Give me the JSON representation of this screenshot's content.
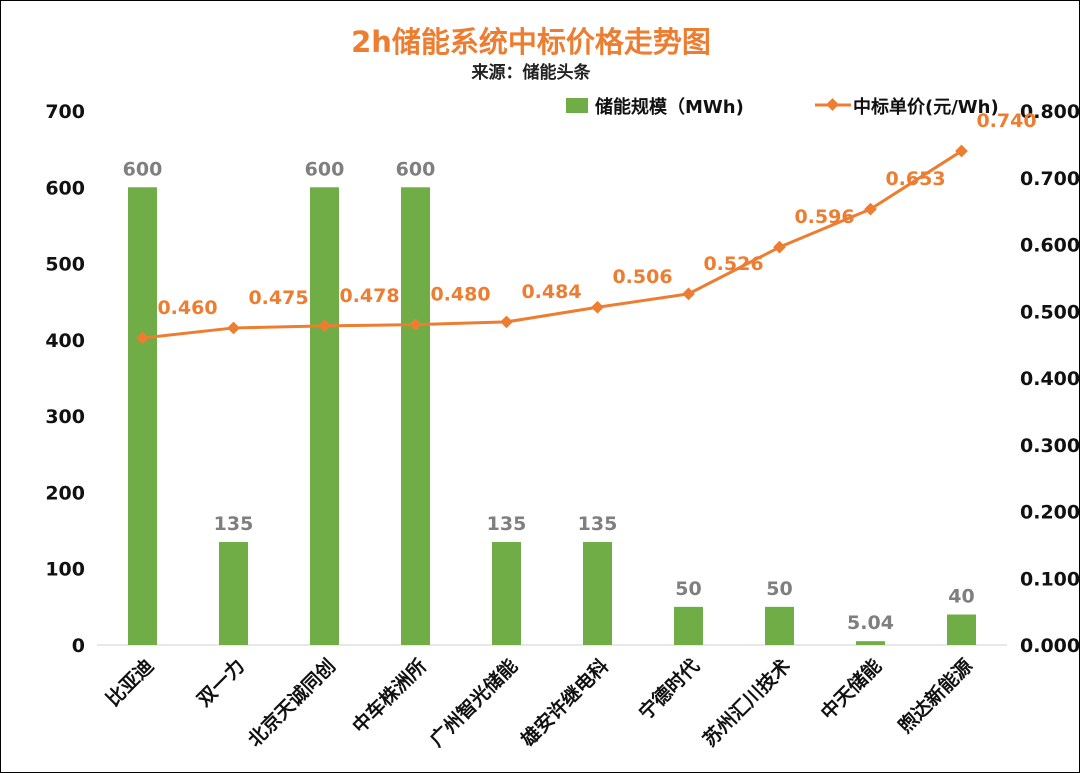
{
  "chart_data": {
    "type": "bar",
    "title": "2h储能系统中标价格走势图",
    "subtitle": "来源：储能头条",
    "categories": [
      "比亚迪",
      "双一力",
      "北京天诚同创",
      "中车株洲所",
      "广州智光储能",
      "雄安许继电科",
      "宁德时代",
      "苏州汇川技术",
      "中天储能",
      "煦达新能源"
    ],
    "series": [
      {
        "name": "储能规模（MWh)",
        "type": "bar",
        "axis": "left",
        "color": "#70AD47",
        "values": [
          600,
          135,
          600,
          600,
          135,
          135,
          50,
          50,
          5.04,
          40
        ],
        "labels": [
          "600",
          "135",
          "600",
          "600",
          "135",
          "135",
          "50",
          "50",
          "5.04",
          "40"
        ]
      },
      {
        "name": "中标单价(元/Wh)",
        "type": "line",
        "axis": "right",
        "color": "#ED7D31",
        "values": [
          0.46,
          0.475,
          0.478,
          0.48,
          0.484,
          0.506,
          0.526,
          0.596,
          0.653,
          0.74
        ],
        "labels": [
          "0.460",
          "0.475",
          "0.478",
          "0.480",
          "0.484",
          "0.506",
          "0.526",
          "0.596",
          "0.653",
          "0.740"
        ]
      }
    ],
    "y_left": {
      "min": 0,
      "max": 700,
      "step": 100,
      "ticks": [
        "0",
        "100",
        "200",
        "300",
        "400",
        "500",
        "600",
        "700"
      ]
    },
    "y_right": {
      "min": 0,
      "max": 0.8,
      "step": 0.1,
      "ticks": [
        "0.000",
        "0.100",
        "0.200",
        "0.300",
        "0.400",
        "0.500",
        "0.600",
        "0.700",
        "0.800"
      ]
    },
    "grid": false,
    "legend_position": "top-right"
  }
}
